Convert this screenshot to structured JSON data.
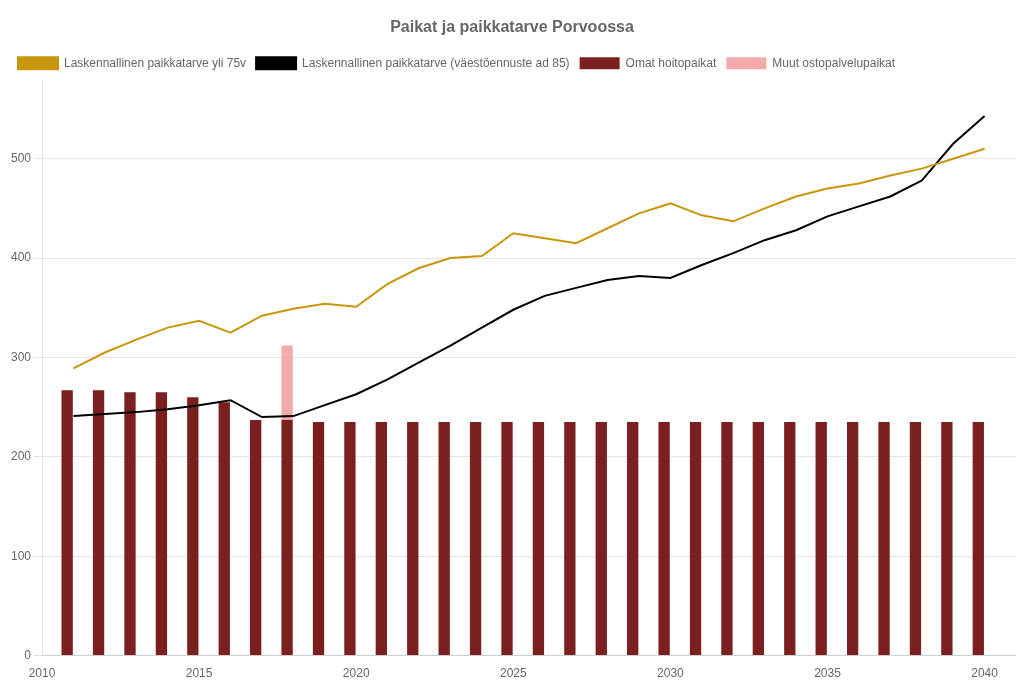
{
  "chart_data": {
    "type": "bar",
    "title": "Paikat ja paikkatarve Porvoossa",
    "x": [
      2011,
      2012,
      2013,
      2014,
      2015,
      2016,
      2017,
      2018,
      2019,
      2020,
      2021,
      2022,
      2023,
      2024,
      2025,
      2026,
      2027,
      2028,
      2029,
      2030,
      2031,
      2032,
      2033,
      2034,
      2035,
      2036,
      2037,
      2038,
      2039,
      2040
    ],
    "series": [
      {
        "name": "Omat hoitopaikat",
        "color": "#7B2020",
        "values": [
          267,
          267,
          265,
          265,
          260,
          255,
          237,
          237,
          235,
          235,
          235,
          235,
          235,
          235,
          235,
          235,
          235,
          235,
          235,
          235,
          235,
          235,
          235,
          235,
          235,
          235,
          235,
          235,
          235,
          235
        ]
      },
      {
        "name": "Muut ostopalvelupaikat",
        "color": "#F4AAAA",
        "values": [
          null,
          null,
          null,
          null,
          null,
          null,
          null,
          75,
          null,
          null,
          null,
          null,
          null,
          null,
          null,
          null,
          null,
          null,
          null,
          null,
          null,
          null,
          null,
          null,
          null,
          null,
          null,
          null,
          null,
          null
        ]
      },
      {
        "name": "Laskennallinen paikkatarve yli 75v",
        "type": "line",
        "color": "#C8960C",
        "values": [
          289,
          305,
          318,
          330,
          337,
          325,
          342,
          349,
          354,
          351,
          374,
          390,
          400,
          402,
          425,
          420,
          415,
          430,
          445,
          455,
          443,
          437,
          450,
          462,
          470,
          475,
          483,
          490,
          500,
          510
        ]
      },
      {
        "name": "Laskennallinen paikkatarve (väestöennuste ad 85)",
        "type": "line",
        "color": "#000000",
        "values": [
          241,
          243,
          245,
          248,
          252,
          257,
          240,
          241,
          252,
          263,
          278,
          295,
          312,
          330,
          348,
          362,
          370,
          378,
          382,
          380,
          393,
          405,
          418,
          428,
          442,
          452,
          462,
          478,
          515,
          543
        ]
      }
    ],
    "stacked": true,
    "xlim": [
      2010,
      2041
    ],
    "xticks": [
      2010,
      2015,
      2020,
      2025,
      2030,
      2035,
      2040
    ],
    "ylim": [
      0,
      580
    ],
    "yticks": [
      0,
      100,
      200,
      300,
      400,
      500
    ],
    "grid": true,
    "legend": "upper left"
  }
}
